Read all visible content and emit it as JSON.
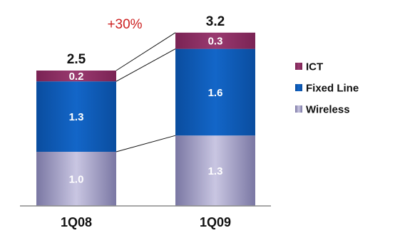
{
  "chart_data": {
    "type": "bar",
    "stacked": true,
    "categories": [
      "1Q08",
      "1Q09"
    ],
    "series": [
      {
        "name": "Wireless",
        "values": [
          1.0,
          1.3
        ],
        "labels": [
          "1.0",
          "1.3"
        ],
        "color": "#9f9cc0"
      },
      {
        "name": "Fixed Line",
        "values": [
          1.3,
          1.6
        ],
        "labels": [
          "1.3",
          "1.6"
        ],
        "color": "#0b58b4"
      },
      {
        "name": "ICT",
        "values": [
          0.2,
          0.3
        ],
        "labels": [
          "0.2",
          "0.3"
        ],
        "color": "#8c2e63"
      }
    ],
    "totals": [
      "2.5",
      "3.2"
    ],
    "growth": {
      "text": "+30%",
      "color": "#cc1f1f"
    },
    "legend": {
      "position": "right",
      "order": [
        "ICT",
        "Fixed Line",
        "Wireless"
      ]
    },
    "grid": false,
    "ylim": [
      0,
      3.2
    ]
  }
}
